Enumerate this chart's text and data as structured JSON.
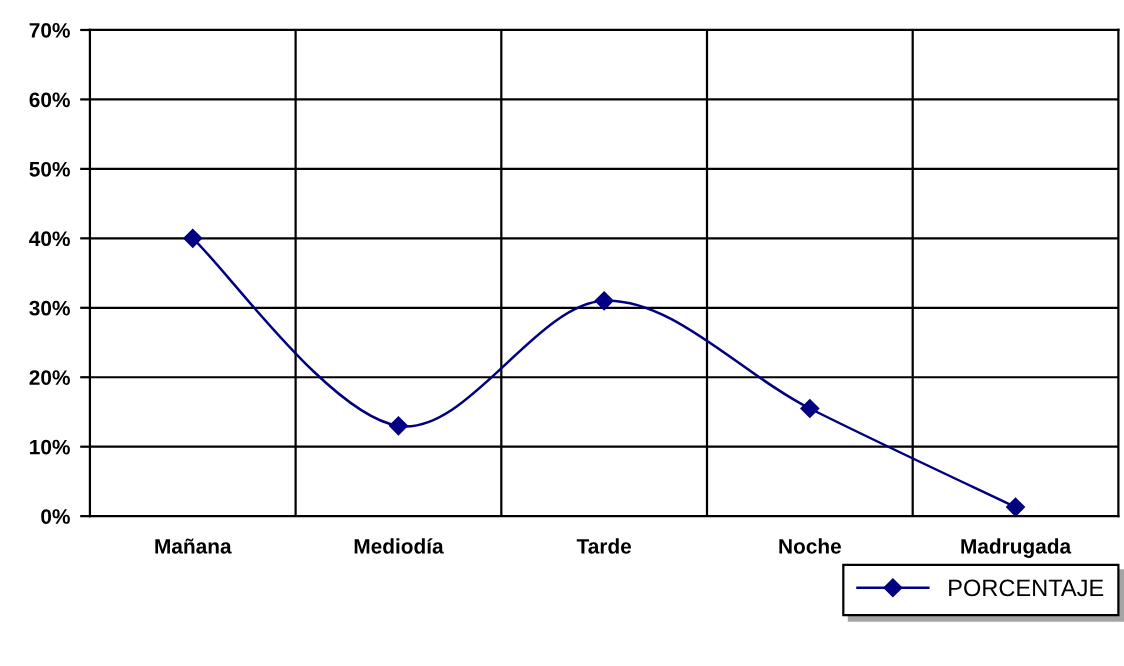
{
  "chart_data": {
    "type": "line",
    "categories": [
      "Mañana",
      "Mediodía",
      "Tarde",
      "Noche",
      "Madrugada"
    ],
    "series": [
      {
        "name": "PORCENTAJE",
        "color": "#000080",
        "values": [
          40,
          13,
          31,
          15.5,
          1.3
        ]
      }
    ],
    "ylim": [
      0,
      70
    ],
    "yticks": [
      {
        "value": 0,
        "label": "0%"
      },
      {
        "value": 10,
        "label": "10%"
      },
      {
        "value": 20,
        "label": "20%"
      },
      {
        "value": 30,
        "label": "30%"
      },
      {
        "value": 40,
        "label": "40%"
      },
      {
        "value": 50,
        "label": "50%"
      },
      {
        "value": 60,
        "label": "60%"
      },
      {
        "value": 70,
        "label": "70%"
      }
    ],
    "grid": true,
    "legend": "bottom right",
    "marker": "diamond",
    "line_style": "solid"
  }
}
